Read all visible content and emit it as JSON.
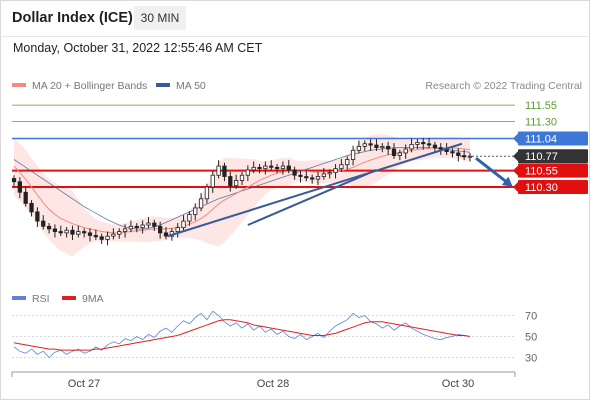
{
  "header": {
    "title": "Dollar Index (ICE)",
    "timeframe": "30 MIN",
    "datetime": "Monday, October 31, 2022 12:55:46 AM CET"
  },
  "legend": {
    "ma20_label": "MA 20 + Bollinger Bands",
    "ma20_color": "#f08a84",
    "ma50_label": "MA 50",
    "ma50_color": "#3a5a9a",
    "credit": "Research © 2022 Trading Central"
  },
  "rsi_legend": {
    "rsi_label": "RSI",
    "rsi_color": "#5b84d8",
    "ma9_label": "9MA",
    "ma9_color": "#e02020"
  },
  "chart_data": [
    {
      "type": "candlestick",
      "title": "Dollar Index (ICE)",
      "ylim": [
        108.85,
        111.75
      ],
      "x_ticks": [
        "Oct 27",
        "Oct 28",
        "Oct 30"
      ],
      "levels": [
        {
          "value": 111.55,
          "label": "111.55",
          "kind": "resistance-target",
          "color": "#5a9e2a"
        },
        {
          "value": 111.3,
          "label": "111.30",
          "kind": "resistance-target",
          "color": "#5a9e2a"
        },
        {
          "value": 111.04,
          "label": "111.04",
          "kind": "pivot",
          "color": "#3d78d8"
        },
        {
          "value": 110.77,
          "label": "110.77",
          "kind": "last-price",
          "color": "#333333"
        },
        {
          "value": 110.55,
          "label": "110.55",
          "kind": "support",
          "color": "#e01010"
        },
        {
          "value": 110.3,
          "label": "110.30",
          "kind": "support",
          "color": "#e01010"
        }
      ],
      "close": [
        110.38,
        110.22,
        110.05,
        109.92,
        109.78,
        109.7,
        109.66,
        109.62,
        109.6,
        109.64,
        109.58,
        109.62,
        109.6,
        109.56,
        109.54,
        109.5,
        109.55,
        109.58,
        109.62,
        109.66,
        109.7,
        109.68,
        109.72,
        109.75,
        109.7,
        109.6,
        109.55,
        109.62,
        109.68,
        109.78,
        109.88,
        109.98,
        110.12,
        110.3,
        110.48,
        110.62,
        110.46,
        110.32,
        110.4,
        110.48,
        110.56,
        110.6,
        110.58,
        110.62,
        110.6,
        110.58,
        110.62,
        110.56,
        110.48,
        110.46,
        110.44,
        110.42,
        110.46,
        110.5,
        110.52,
        110.58,
        110.64,
        110.72,
        110.86,
        110.92,
        110.96,
        110.94,
        110.9,
        110.92,
        110.88,
        110.78,
        110.82,
        110.88,
        110.95,
        110.98,
        110.96,
        110.94,
        110.9,
        110.88,
        110.84,
        110.82,
        110.78,
        110.76,
        110.77
      ],
      "series": [
        {
          "name": "MA 20 + Bollinger Bands",
          "values": [
            110.62,
            110.52,
            110.42,
            110.3,
            110.18,
            110.06,
            109.96,
            109.88,
            109.82,
            109.78,
            109.74,
            109.71,
            109.68,
            109.66,
            109.64,
            109.62,
            109.61,
            109.6,
            109.6,
            109.61,
            109.62,
            109.63,
            109.64,
            109.65,
            109.66,
            109.66,
            109.66,
            109.67,
            109.68,
            109.7,
            109.73,
            109.77,
            109.82,
            109.88,
            109.96,
            110.04,
            110.1,
            110.15,
            110.2,
            110.25,
            110.3,
            110.35,
            110.4,
            110.44,
            110.48,
            110.51,
            110.53,
            110.54,
            110.54,
            110.54,
            110.54,
            110.53,
            110.53,
            110.53,
            110.53,
            110.54,
            110.55,
            110.57,
            110.6,
            110.64,
            110.68,
            110.71,
            110.74,
            110.77,
            110.79,
            110.81,
            110.83,
            110.84,
            110.86,
            110.87,
            110.88,
            110.89,
            110.9,
            110.9,
            110.9,
            110.9,
            110.89,
            110.88,
            110.87
          ]
        },
        {
          "name": "MA 50",
          "values": [
            110.72,
            110.66,
            110.6,
            110.54,
            110.48,
            110.42,
            110.36,
            110.3,
            110.24,
            110.18,
            110.12,
            110.06,
            110.0,
            109.95,
            109.9,
            109.85,
            109.8,
            109.76,
            109.72,
            109.69,
            109.67,
            109.66,
            109.66,
            109.67,
            109.69,
            109.72,
            109.76,
            109.8,
            109.84,
            109.88,
            109.92,
            109.96,
            110.0,
            110.04,
            110.08,
            110.12,
            110.15,
            110.18,
            110.21,
            110.24,
            110.27,
            110.3,
            110.33,
            110.36,
            110.39,
            110.42,
            110.45,
            110.48,
            110.51,
            110.54,
            110.57,
            110.6,
            110.63,
            110.66,
            110.69,
            110.72,
            110.75,
            110.78,
            110.8,
            110.82,
            110.84,
            110.86,
            110.87,
            110.88,
            110.89,
            110.9,
            110.9,
            110.9,
            110.9,
            110.9,
            110.9,
            110.9,
            110.89,
            110.88,
            110.87,
            110.86,
            110.85,
            110.84,
            110.83
          ]
        }
      ]
    },
    {
      "type": "line",
      "title": "RSI",
      "ylim": [
        20,
        80
      ],
      "y_ticks": [
        70,
        50,
        30
      ],
      "series": [
        {
          "name": "RSI",
          "values": [
            40,
            36,
            34,
            38,
            33,
            36,
            30,
            35,
            37,
            33,
            36,
            38,
            34,
            36,
            40,
            37,
            42,
            45,
            43,
            48,
            46,
            50,
            47,
            52,
            49,
            55,
            58,
            54,
            60,
            65,
            62,
            68,
            72,
            66,
            74,
            70,
            64,
            60,
            63,
            58,
            62,
            56,
            60,
            54,
            57,
            52,
            55,
            50,
            48,
            52,
            47,
            50,
            53,
            49,
            55,
            60,
            63,
            66,
            72,
            68,
            70,
            64,
            62,
            58,
            61,
            56,
            60,
            63,
            58,
            55,
            52,
            50,
            48,
            47,
            49,
            50,
            52,
            51,
            50
          ]
        },
        {
          "name": "9MA",
          "values": [
            44,
            43,
            42,
            41,
            40,
            39,
            38,
            38,
            37,
            37,
            37,
            37,
            37,
            37,
            38,
            38,
            39,
            40,
            41,
            42,
            43,
            44,
            45,
            46,
            47,
            48,
            49,
            50,
            51,
            53,
            55,
            57,
            59,
            61,
            63,
            65,
            66,
            66,
            65,
            64,
            63,
            61,
            60,
            59,
            58,
            57,
            56,
            55,
            54,
            53,
            52,
            51,
            51,
            51,
            52,
            53,
            55,
            57,
            59,
            61,
            63,
            64,
            64,
            64,
            63,
            62,
            61,
            60,
            59,
            58,
            57,
            56,
            55,
            54,
            53,
            52,
            51,
            51,
            50
          ]
        }
      ]
    }
  ]
}
